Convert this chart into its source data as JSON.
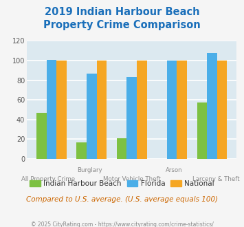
{
  "title": "2019 Indian Harbour Beach\nProperty Crime Comparison",
  "title_color": "#1a6fba",
  "categories": [
    "All Property Crime",
    "Burglary",
    "Motor Vehicle Theft",
    "Arson",
    "Larceny & Theft"
  ],
  "x_labels_top": [
    "",
    "Burglary",
    "",
    "Arson",
    ""
  ],
  "x_labels_bottom": [
    "All Property Crime",
    "",
    "Motor Vehicle Theft",
    "",
    "Larceny & Theft"
  ],
  "ihb_values": [
    47,
    17,
    21,
    0,
    57
  ],
  "florida_values": [
    101,
    87,
    83,
    100,
    108
  ],
  "national_values": [
    100,
    100,
    100,
    100,
    100
  ],
  "ihb_color": "#7dc142",
  "florida_color": "#4baee8",
  "national_color": "#f5a623",
  "bar_width": 0.25,
  "ylim": [
    0,
    120
  ],
  "yticks": [
    0,
    20,
    40,
    60,
    80,
    100,
    120
  ],
  "grid_color": "#ffffff",
  "bg_color": "#dce9f0",
  "fig_color": "#f5f5f5",
  "legend_labels": [
    "Indian Harbour Beach",
    "Florida",
    "National"
  ],
  "note": "Compared to U.S. average. (U.S. average equals 100)",
  "note_color": "#cc6600",
  "footer": "© 2025 CityRating.com - https://www.cityrating.com/crime-statistics/",
  "footer_color": "#888888"
}
